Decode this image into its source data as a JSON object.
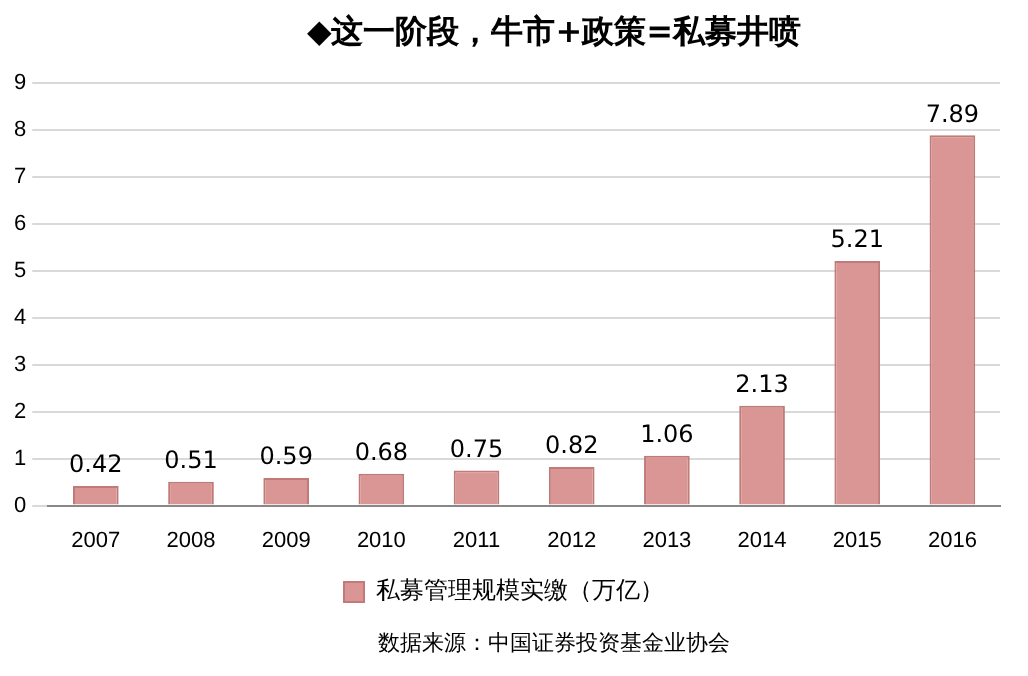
{
  "chart_data": {
    "type": "bar",
    "title": "◆这一阶段，牛市+政策=私募井喷",
    "categories": [
      "2007",
      "2008",
      "2009",
      "2010",
      "2011",
      "2012",
      "2013",
      "2014",
      "2015",
      "2016"
    ],
    "series": [
      {
        "name": "私募管理规模实缴（万亿）",
        "color": "#d99694",
        "values": [
          0.42,
          0.51,
          0.59,
          0.68,
          0.75,
          0.82,
          1.06,
          2.13,
          5.21,
          7.89
        ]
      }
    ],
    "ylim": [
      0,
      9
    ],
    "yticks": [
      0,
      1,
      2,
      3,
      4,
      5,
      6,
      7,
      8,
      9
    ],
    "grid": "y",
    "legend": "bottom",
    "data_labels": true,
    "annotations": [
      "数据来源：中国证券投资基金业协会"
    ]
  }
}
